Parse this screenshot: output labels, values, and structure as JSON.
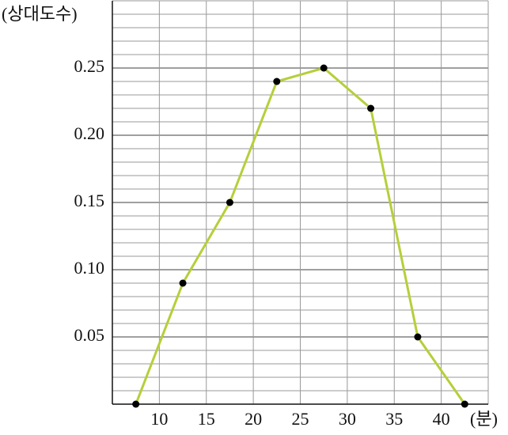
{
  "chart_data": {
    "type": "line",
    "y_label": "(상대도수)",
    "x_label": "(분)",
    "x": [
      7.5,
      12.5,
      17.5,
      22.5,
      27.5,
      32.5,
      37.5,
      42.5
    ],
    "values": [
      0,
      0.09,
      0.15,
      0.24,
      0.25,
      0.22,
      0.05,
      0
    ],
    "color": "#b5cf3a",
    "marker_color": "#000000",
    "xlim": [
      5,
      45
    ],
    "xticks": [
      10,
      15,
      20,
      25,
      30,
      35,
      40
    ],
    "ylim": [
      0,
      0.3
    ],
    "yticks": [
      0.05,
      {
        "value": 0.1,
        "label": "0.10"
      },
      0.15,
      {
        "value": 0.2,
        "label": "0.20"
      },
      0.25
    ],
    "yminorticks": [
      0.01,
      0.02,
      0.03,
      0.04,
      0.06,
      0.07,
      0.08,
      0.09,
      0.11,
      0.12,
      0.13,
      0.14,
      0.16,
      0.17,
      0.18,
      0.19,
      0.21,
      0.22,
      0.23,
      0.24,
      0.26,
      0.27,
      0.28,
      0.29,
      0.3
    ],
    "grid": true
  }
}
